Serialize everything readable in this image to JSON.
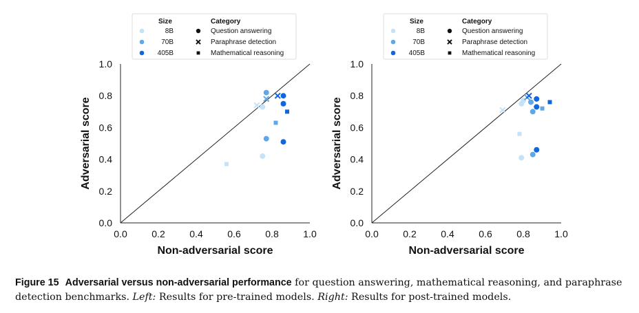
{
  "legend": {
    "size_title": "Size",
    "category_title": "Category",
    "sizes": [
      {
        "label": "8B",
        "color": "#c6e2f7"
      },
      {
        "label": "70B",
        "color": "#5fa8e8"
      },
      {
        "label": "405B",
        "color": "#1266d9"
      }
    ],
    "categories": [
      {
        "label": "Question answering",
        "marker": "circle"
      },
      {
        "label": "Paraphrase detection",
        "marker": "x"
      },
      {
        "label": "Mathematical reasoning",
        "marker": "square"
      }
    ]
  },
  "chart_data": [
    {
      "type": "scatter",
      "panel": "Left: pre-trained models",
      "xlabel": "Non-adversarial score",
      "ylabel": "Adversarial score",
      "xlim": [
        0.0,
        1.0
      ],
      "ylim": [
        0.0,
        1.0
      ],
      "ticks": [
        "0.0",
        "0.2",
        "0.4",
        "0.6",
        "0.8",
        "1.0"
      ],
      "diagonal": true,
      "points": [
        {
          "x": 0.56,
          "y": 0.37,
          "size": "8B",
          "category": "Mathematical reasoning"
        },
        {
          "x": 0.75,
          "y": 0.42,
          "size": "8B",
          "category": "Question answering"
        },
        {
          "x": 0.75,
          "y": 0.73,
          "size": "8B",
          "category": "Question answering"
        },
        {
          "x": 0.72,
          "y": 0.74,
          "size": "8B",
          "category": "Paraphrase detection"
        },
        {
          "x": 0.77,
          "y": 0.53,
          "size": "70B",
          "category": "Question answering"
        },
        {
          "x": 0.77,
          "y": 0.82,
          "size": "70B",
          "category": "Question answering"
        },
        {
          "x": 0.77,
          "y": 0.78,
          "size": "70B",
          "category": "Paraphrase detection"
        },
        {
          "x": 0.82,
          "y": 0.63,
          "size": "70B",
          "category": "Mathematical reasoning"
        },
        {
          "x": 0.86,
          "y": 0.51,
          "size": "405B",
          "category": "Question answering"
        },
        {
          "x": 0.86,
          "y": 0.8,
          "size": "405B",
          "category": "Question answering"
        },
        {
          "x": 0.86,
          "y": 0.75,
          "size": "405B",
          "category": "Question answering"
        },
        {
          "x": 0.83,
          "y": 0.8,
          "size": "405B",
          "category": "Paraphrase detection"
        },
        {
          "x": 0.88,
          "y": 0.7,
          "size": "405B",
          "category": "Mathematical reasoning"
        }
      ]
    },
    {
      "type": "scatter",
      "panel": "Right: post-trained models",
      "xlabel": "Non-adversarial score",
      "ylabel": "Adversarial score",
      "xlim": [
        0.0,
        1.0
      ],
      "ylim": [
        0.0,
        1.0
      ],
      "ticks": [
        "0.0",
        "0.2",
        "0.4",
        "0.6",
        "0.8",
        "1.0"
      ],
      "diagonal": true,
      "points": [
        {
          "x": 0.79,
          "y": 0.41,
          "size": "8B",
          "category": "Question answering"
        },
        {
          "x": 0.78,
          "y": 0.56,
          "size": "8B",
          "category": "Mathematical reasoning"
        },
        {
          "x": 0.79,
          "y": 0.75,
          "size": "8B",
          "category": "Question answering"
        },
        {
          "x": 0.8,
          "y": 0.77,
          "size": "8B",
          "category": "Question answering"
        },
        {
          "x": 0.69,
          "y": 0.71,
          "size": "8B",
          "category": "Paraphrase detection"
        },
        {
          "x": 0.85,
          "y": 0.43,
          "size": "70B",
          "category": "Question answering"
        },
        {
          "x": 0.85,
          "y": 0.7,
          "size": "70B",
          "category": "Question answering"
        },
        {
          "x": 0.84,
          "y": 0.76,
          "size": "70B",
          "category": "Question answering"
        },
        {
          "x": 0.9,
          "y": 0.72,
          "size": "70B",
          "category": "Mathematical reasoning"
        },
        {
          "x": 0.82,
          "y": 0.79,
          "size": "70B",
          "category": "Paraphrase detection"
        },
        {
          "x": 0.87,
          "y": 0.46,
          "size": "405B",
          "category": "Question answering"
        },
        {
          "x": 0.87,
          "y": 0.73,
          "size": "405B",
          "category": "Question answering"
        },
        {
          "x": 0.87,
          "y": 0.78,
          "size": "405B",
          "category": "Question answering"
        },
        {
          "x": 0.83,
          "y": 0.8,
          "size": "405B",
          "category": "Paraphrase detection"
        },
        {
          "x": 0.94,
          "y": 0.76,
          "size": "405B",
          "category": "Mathematical reasoning"
        }
      ]
    }
  ],
  "caption": {
    "label": "Figure 15",
    "bold_text": "Adversarial versus non-adversarial performance",
    "text1": " for question answering, mathematical reasoning, and paraphrase detection benchmarks. ",
    "left_label": "Left:",
    "left_text": " Results for pre-trained models. ",
    "right_label": "Right:",
    "right_text": " Results for post-trained models."
  }
}
